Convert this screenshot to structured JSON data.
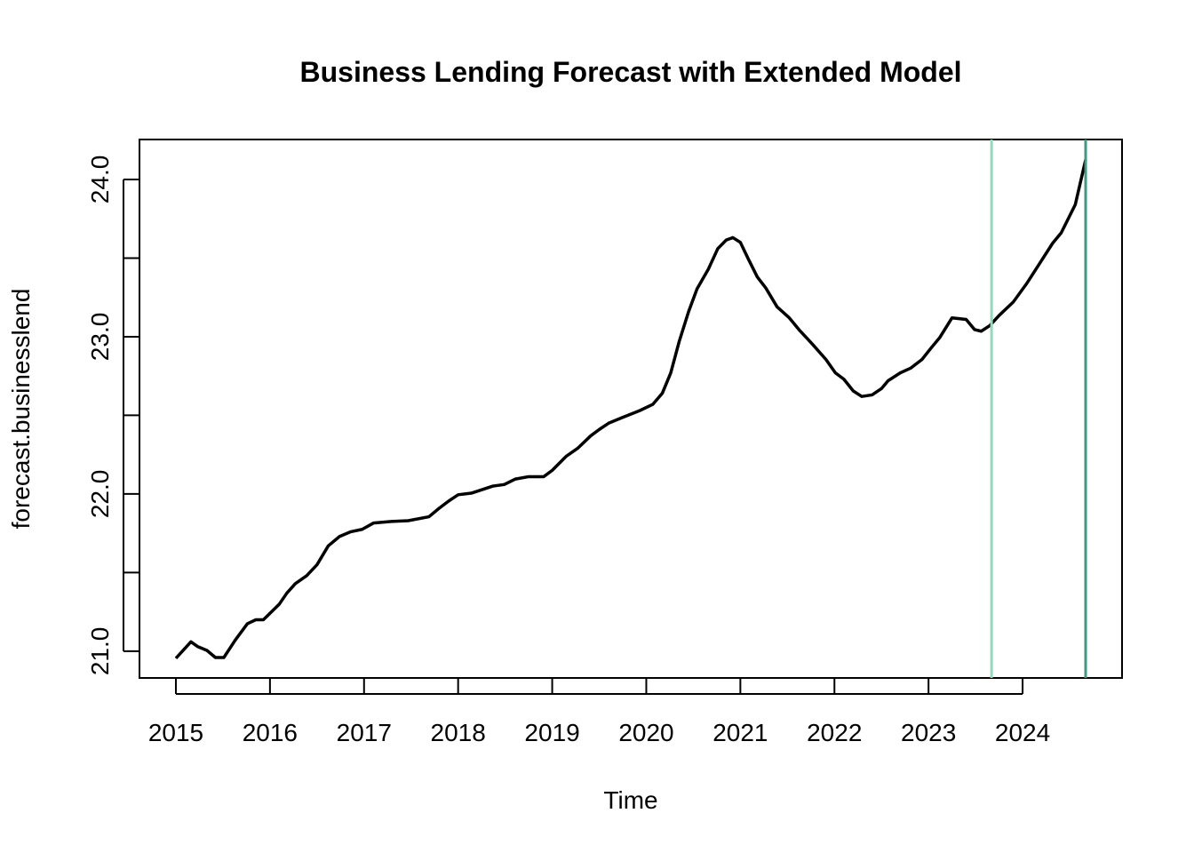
{
  "chart_data": {
    "type": "line",
    "title": "Business Lending Forecast with Extended Model",
    "x_label": "Time",
    "y_label": "forecast.businesslend",
    "x": [
      2015.0,
      2015.16,
      2015.23,
      2015.33,
      2015.42,
      2015.51,
      2015.63,
      2015.76,
      2015.85,
      2015.93,
      2016.1,
      2016.18,
      2016.27,
      2016.39,
      2016.5,
      2016.62,
      2016.74,
      2016.86,
      2016.98,
      2017.1,
      2017.29,
      2017.47,
      2017.69,
      2017.8,
      2017.9,
      2018.0,
      2018.14,
      2018.37,
      2018.49,
      2018.61,
      2018.75,
      2018.91,
      2019.0,
      2019.15,
      2019.27,
      2019.41,
      2019.5,
      2019.6,
      2019.74,
      2019.93,
      2020.07,
      2020.17,
      2020.26,
      2020.35,
      2020.45,
      2020.54,
      2020.66,
      2020.76,
      2020.85,
      2020.92,
      2021.0,
      2021.08,
      2021.18,
      2021.27,
      2021.39,
      2021.52,
      2021.63,
      2021.77,
      2021.91,
      2022.01,
      2022.1,
      2022.2,
      2022.29,
      2022.4,
      2022.5,
      2022.57,
      2022.7,
      2022.81,
      2022.93,
      2023.03,
      2023.12,
      2023.25,
      2023.4,
      2023.49,
      2023.56,
      2023.65,
      2023.75,
      2023.9,
      2024.04,
      2024.18,
      2024.32,
      2024.41,
      2024.56,
      2024.67
    ],
    "series": [
      {
        "color": "#000000",
        "values": [
          20.955,
          21.06,
          21.03,
          21.005,
          20.96,
          20.96,
          21.07,
          21.175,
          21.2,
          21.2,
          21.3,
          21.37,
          21.43,
          21.48,
          21.55,
          21.67,
          21.73,
          21.76,
          21.775,
          21.815,
          21.825,
          21.83,
          21.855,
          21.91,
          21.955,
          21.995,
          22.005,
          22.05,
          22.06,
          22.095,
          22.11,
          22.11,
          22.15,
          22.24,
          22.29,
          22.37,
          22.41,
          22.45,
          22.485,
          22.53,
          22.57,
          22.64,
          22.77,
          22.97,
          23.16,
          23.305,
          23.43,
          23.56,
          23.615,
          23.63,
          23.6,
          23.5,
          23.38,
          23.31,
          23.19,
          23.12,
          23.04,
          22.95,
          22.855,
          22.77,
          22.73,
          22.655,
          22.62,
          22.63,
          22.67,
          22.72,
          22.77,
          22.8,
          22.855,
          22.93,
          22.995,
          23.12,
          23.11,
          23.045,
          23.035,
          23.07,
          23.135,
          23.22,
          23.335,
          23.465,
          23.595,
          23.66,
          23.84,
          24.125
        ]
      }
    ],
    "vlines": [
      {
        "x": 2023.67,
        "color": "#8fdcb8"
      },
      {
        "x": 2024.67,
        "color": "#3a9a82"
      }
    ],
    "xlim": [
      2014.613,
      2025.057
    ],
    "ylim": [
      20.83,
      24.254
    ],
    "xticks": [
      2015,
      2016,
      2017,
      2018,
      2019,
      2020,
      2021,
      2022,
      2023,
      2024
    ],
    "yticks": [
      {
        "value": 21,
        "label": "21.0"
      },
      {
        "value": 22,
        "label": "22.0"
      },
      {
        "value": 23,
        "label": "23.0"
      },
      {
        "value": 24,
        "label": "24.0"
      }
    ],
    "yticks_minor": [
      21.5,
      22.5,
      23.5
    ]
  }
}
